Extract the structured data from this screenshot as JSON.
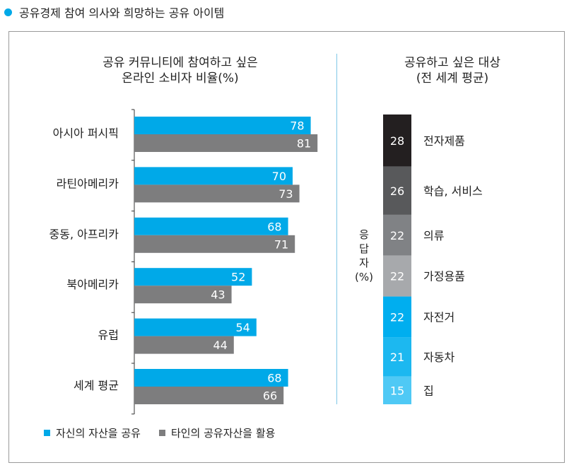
{
  "header": {
    "title": "공유경제 참여 의사와 희망하는 공유 아이템"
  },
  "colors": {
    "accent": "#00a9e8",
    "gray": "#7d7d7e"
  },
  "chart_data": [
    {
      "type": "bar",
      "orientation": "horizontal",
      "title_lines": [
        "공유 커뮤니티에 참여하고 싶은",
        "온라인 소비자 비율(%)"
      ],
      "categories": [
        "아시아 퍼시픽",
        "라틴아메리카",
        "중동, 아프리카",
        "북아메리카",
        "유럽",
        "세계 평균"
      ],
      "series": [
        {
          "name": "자신의 자산을 공유",
          "color": "#00a9e8",
          "values": [
            78,
            70,
            68,
            52,
            54,
            68
          ]
        },
        {
          "name": "타인의 공유자산을 활용",
          "color": "#7d7d7e",
          "values": [
            81,
            73,
            71,
            43,
            44,
            66
          ]
        }
      ],
      "xlim": [
        0,
        100
      ],
      "legend": "bottom"
    },
    {
      "type": "bar",
      "orientation": "stacked-vertical",
      "title_lines": [
        "공유하고 싶은 대상",
        "(전 세계 평균)"
      ],
      "ylabel": "응답자(%)",
      "segments": [
        {
          "label": "전자제품",
          "value": 28,
          "color": "#231f20"
        },
        {
          "label": "학습, 서비스",
          "value": 26,
          "color": "#58595b"
        },
        {
          "label": "의류",
          "value": 22,
          "color": "#808285"
        },
        {
          "label": "가정용품",
          "value": 22,
          "color": "#a7a9ac"
        },
        {
          "label": "자전거",
          "value": 22,
          "color": "#00aeef"
        },
        {
          "label": "자동차",
          "value": 21,
          "color": "#1cb8f0"
        },
        {
          "label": "집",
          "value": 15,
          "color": "#4fc9f5"
        }
      ]
    }
  ]
}
